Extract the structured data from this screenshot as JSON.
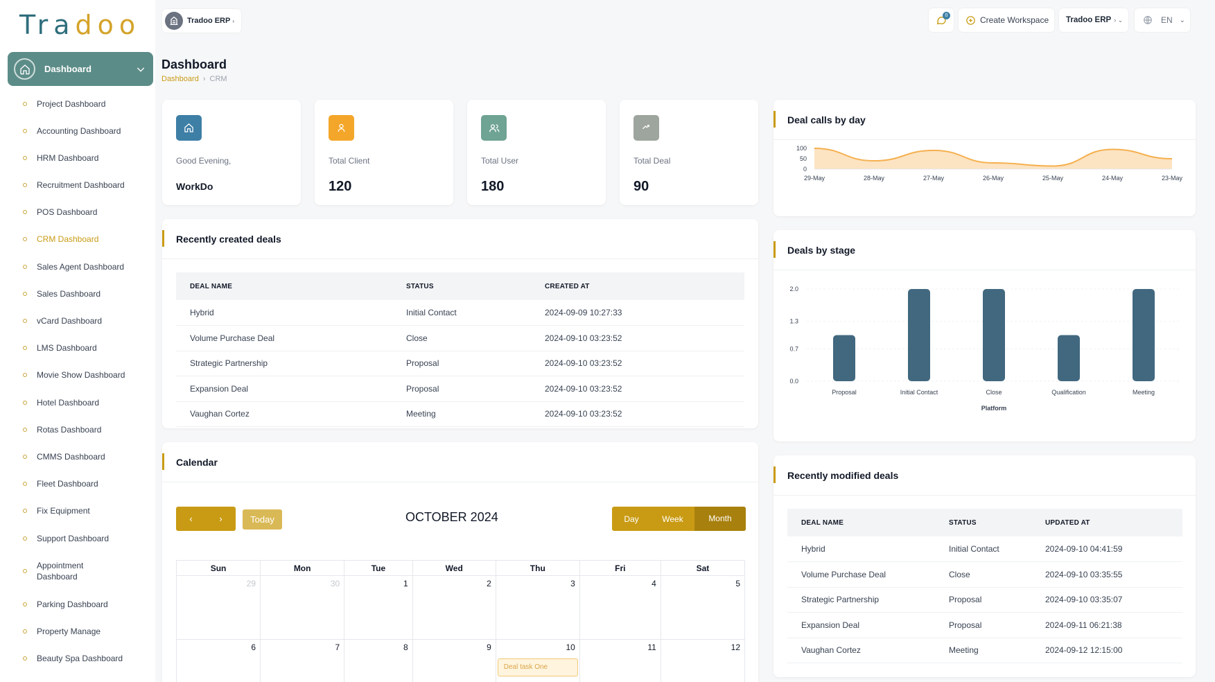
{
  "brand": {
    "logo_part1": "Tra",
    "logo_part2": "doo"
  },
  "sidebar": {
    "active_label": "Dashboard",
    "items": [
      {
        "label": "Project Dashboard"
      },
      {
        "label": "Accounting Dashboard"
      },
      {
        "label": "HRM Dashboard"
      },
      {
        "label": "Recruitment Dashboard"
      },
      {
        "label": "POS Dashboard"
      },
      {
        "label": "CRM Dashboard",
        "active": true
      },
      {
        "label": "Sales Agent Dashboard"
      },
      {
        "label": "Sales Dashboard"
      },
      {
        "label": "vCard Dashboard"
      },
      {
        "label": "LMS Dashboard"
      },
      {
        "label": "Movie Show Dashboard"
      },
      {
        "label": "Hotel Dashboard"
      },
      {
        "label": "Rotas Dashboard"
      },
      {
        "label": "CMMS Dashboard"
      },
      {
        "label": "Fleet Dashboard"
      },
      {
        "label": "Fix Equipment"
      },
      {
        "label": "Support Dashboard"
      },
      {
        "label": "Appointment Dashboard"
      },
      {
        "label": "Parking Dashboard"
      },
      {
        "label": "Property Manage"
      },
      {
        "label": "Beauty Spa Dashboard"
      }
    ]
  },
  "topbar": {
    "workspace_chip": "Tradoo ERP",
    "notification_count": "0",
    "create_workspace": "Create Workspace",
    "workspace_select": "Tradoo ERP",
    "language": "EN"
  },
  "header": {
    "title": "Dashboard",
    "breadcrumb_home": "Dashboard",
    "breadcrumb_current": "CRM"
  },
  "stats": {
    "greeting_label": "Good Evening,",
    "greeting_name": "WorkDo",
    "client_label": "Total Client",
    "client_value": "120",
    "user_label": "Total User",
    "user_value": "180",
    "deal_label": "Total Deal",
    "deal_value": "90"
  },
  "recent_deals": {
    "title": "Recently created deals",
    "columns": [
      "DEAL NAME",
      "STATUS",
      "CREATED AT"
    ],
    "rows": [
      [
        "Hybrid",
        "Initial Contact",
        "2024-09-09 10:27:33"
      ],
      [
        "Volume Purchase Deal",
        "Close",
        "2024-09-10 03:23:52"
      ],
      [
        "Strategic Partnership",
        "Proposal",
        "2024-09-10 03:23:52"
      ],
      [
        "Expansion Deal",
        "Proposal",
        "2024-09-10 03:23:52"
      ],
      [
        "Vaughan Cortez",
        "Meeting",
        "2024-09-10 03:23:52"
      ]
    ]
  },
  "calendar": {
    "title": "Calendar",
    "today_label": "Today",
    "month_label": "OCTOBER 2024",
    "views": [
      "Day",
      "Week",
      "Month"
    ],
    "weekdays": [
      "Sun",
      "Mon",
      "Tue",
      "Wed",
      "Thu",
      "Fri",
      "Sat"
    ],
    "week1": [
      "29",
      "30",
      "1",
      "2",
      "3",
      "4",
      "5"
    ],
    "week2": [
      "6",
      "7",
      "8",
      "9",
      "10",
      "11",
      "12"
    ],
    "event_label": "Deal task One"
  },
  "deal_calls": {
    "title": "Deal calls by day"
  },
  "deals_by_stage": {
    "title": "Deals by stage"
  },
  "recent_modified": {
    "title": "Recently modified deals",
    "columns": [
      "DEAL NAME",
      "STATUS",
      "UPDATED AT"
    ],
    "rows": [
      [
        "Hybrid",
        "Initial Contact",
        "2024-09-10 04:41:59"
      ],
      [
        "Volume Purchase Deal",
        "Close",
        "2024-09-10 03:35:55"
      ],
      [
        "Strategic Partnership",
        "Proposal",
        "2024-09-10 03:35:07"
      ],
      [
        "Expansion Deal",
        "Proposal",
        "2024-09-11 06:21:38"
      ],
      [
        "Vaughan Cortez",
        "Meeting",
        "2024-09-12 12:15:00"
      ]
    ]
  },
  "chart_data": [
    {
      "type": "area",
      "title": "Deal calls by day",
      "categories": [
        "29-May",
        "28-May",
        "27-May",
        "26-May",
        "25-May",
        "24-May",
        "23-May"
      ],
      "values": [
        100,
        40,
        90,
        30,
        15,
        95,
        50
      ],
      "y_ticks": [
        "100",
        "50",
        "0"
      ],
      "ylim": [
        0,
        100
      ],
      "color": "#f5b04f"
    },
    {
      "type": "bar",
      "title": "Deals by stage",
      "categories": [
        "Proposal",
        "Initial Contact",
        "Close",
        "Qualification",
        "Meeting"
      ],
      "values": [
        1,
        2,
        2,
        1,
        2
      ],
      "y_ticks": [
        "2.0",
        "1.3",
        "0.7",
        "0.0"
      ],
      "ylim": [
        0,
        2
      ],
      "xlabel": "Platform",
      "color": "#41687f"
    }
  ],
  "colors": {
    "accent": "#c99b14",
    "sidebar_active": "#5c8c88",
    "icon_home": "#3e7fa6",
    "icon_client": "#f4a62a",
    "icon_user": "#6fa393",
    "icon_deal": "#9ea59e"
  }
}
